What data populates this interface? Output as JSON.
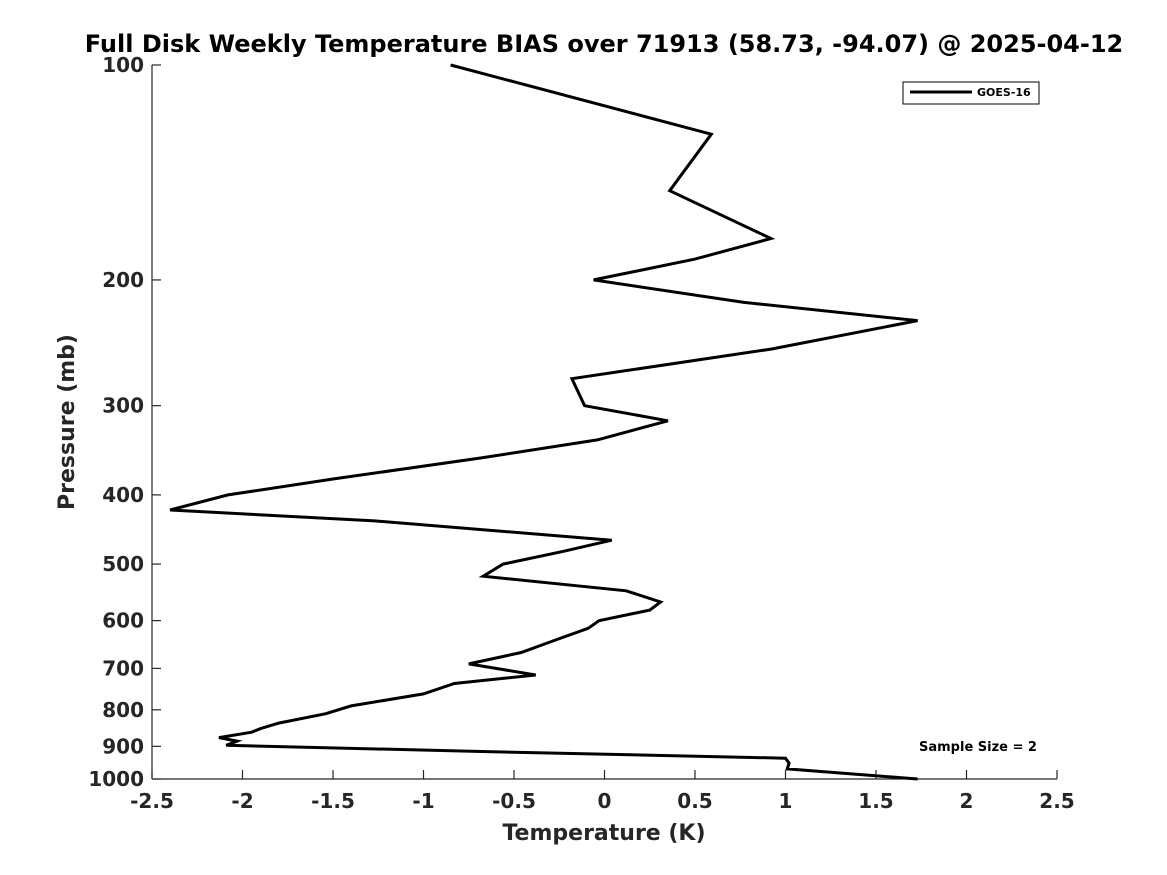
{
  "chart_data": {
    "type": "line",
    "title": "Full Disk Weekly Temperature BIAS over 71913 (58.73, -94.07) @ 2025-04-12",
    "xlabel": "Temperature (K)",
    "ylabel": "Pressure (mb)",
    "xlim": [
      -2.5,
      2.5
    ],
    "ylim": [
      100,
      1000
    ],
    "y_scale": "log",
    "y_reversed": true,
    "x_ticks": [
      {
        "value": -2.5,
        "label": "-2.5"
      },
      {
        "value": -2,
        "label": "-2"
      },
      {
        "value": -1.5,
        "label": "-1.5"
      },
      {
        "value": -1,
        "label": "-1"
      },
      {
        "value": -0.5,
        "label": "-0.5"
      },
      {
        "value": 0,
        "label": "0"
      },
      {
        "value": 0.5,
        "label": "0.5"
      },
      {
        "value": 1,
        "label": "1"
      },
      {
        "value": 1.5,
        "label": "1.5"
      },
      {
        "value": 2,
        "label": "2"
      },
      {
        "value": 2.5,
        "label": "2.5"
      }
    ],
    "y_ticks": [
      {
        "value": 100,
        "label": "100"
      },
      {
        "value": 200,
        "label": "200"
      },
      {
        "value": 300,
        "label": "300"
      },
      {
        "value": 400,
        "label": "400"
      },
      {
        "value": 500,
        "label": "500"
      },
      {
        "value": 600,
        "label": "600"
      },
      {
        "value": 700,
        "label": "700"
      },
      {
        "value": 800,
        "label": "800"
      },
      {
        "value": 900,
        "label": "900"
      },
      {
        "value": 1000,
        "label": "1000"
      }
    ],
    "legend": {
      "position": "top-right",
      "entries": [
        "GOES-16"
      ]
    },
    "annotation": "Sample Size = 2",
    "series": [
      {
        "name": "GOES-16",
        "color": "#000000",
        "points": [
          {
            "x": -0.85,
            "p": 100
          },
          {
            "x": 0.59,
            "p": 125
          },
          {
            "x": 0.36,
            "p": 150
          },
          {
            "x": 0.92,
            "p": 175
          },
          {
            "x": 0.5,
            "p": 187
          },
          {
            "x": -0.06,
            "p": 200
          },
          {
            "x": 0.77,
            "p": 215
          },
          {
            "x": 1.73,
            "p": 228
          },
          {
            "x": 0.92,
            "p": 250
          },
          {
            "x": -0.18,
            "p": 275
          },
          {
            "x": -0.11,
            "p": 300
          },
          {
            "x": 0.35,
            "p": 315
          },
          {
            "x": -0.04,
            "p": 335
          },
          {
            "x": -0.68,
            "p": 355
          },
          {
            "x": -1.5,
            "p": 380
          },
          {
            "x": -2.08,
            "p": 400
          },
          {
            "x": -2.4,
            "p": 420
          },
          {
            "x": -1.27,
            "p": 435
          },
          {
            "x": 0.04,
            "p": 463
          },
          {
            "x": -0.23,
            "p": 480
          },
          {
            "x": -0.56,
            "p": 500
          },
          {
            "x": -0.67,
            "p": 520
          },
          {
            "x": 0.12,
            "p": 545
          },
          {
            "x": 0.31,
            "p": 565
          },
          {
            "x": 0.25,
            "p": 580
          },
          {
            "x": -0.03,
            "p": 600
          },
          {
            "x": -0.09,
            "p": 615
          },
          {
            "x": -0.28,
            "p": 640
          },
          {
            "x": -0.46,
            "p": 665
          },
          {
            "x": -0.75,
            "p": 690
          },
          {
            "x": -0.38,
            "p": 715
          },
          {
            "x": -0.83,
            "p": 735
          },
          {
            "x": -1.0,
            "p": 760
          },
          {
            "x": -1.4,
            "p": 790
          },
          {
            "x": -1.54,
            "p": 810
          },
          {
            "x": -1.8,
            "p": 835
          },
          {
            "x": -1.9,
            "p": 850
          },
          {
            "x": -1.95,
            "p": 860
          },
          {
            "x": -2.13,
            "p": 875
          },
          {
            "x": -2.03,
            "p": 885
          },
          {
            "x": -2.09,
            "p": 897
          },
          {
            "x": -0.68,
            "p": 915
          },
          {
            "x": 1.0,
            "p": 935
          },
          {
            "x": 1.02,
            "p": 950
          },
          {
            "x": 1.01,
            "p": 968
          },
          {
            "x": 1.73,
            "p": 1000
          }
        ]
      }
    ]
  }
}
